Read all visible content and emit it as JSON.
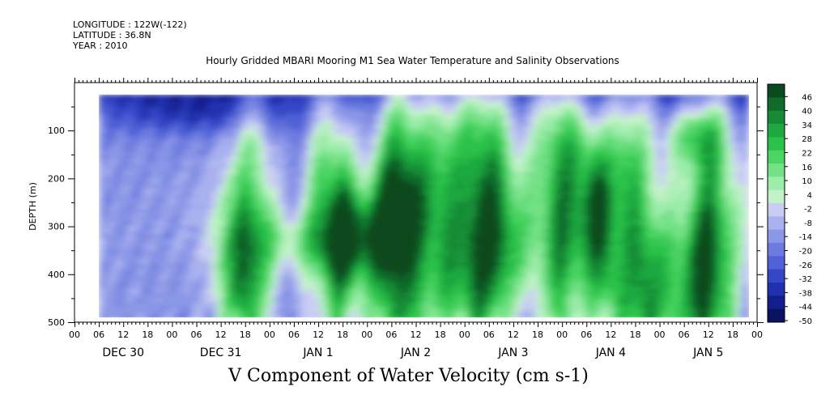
{
  "meta": {
    "longitude": "LONGITUDE : 122W(-122)",
    "latitude": "LATITUDE : 36.8N",
    "year": "YEAR : 2010"
  },
  "chart_data": {
    "type": "heatmap",
    "title": "Hourly Gridded MBARI Mooring M1 Sea Water Temperature and Salinity Observations",
    "xlabel": "V Component of Water Velocity (cm s-1)",
    "ylabel": "DEPTH (m)",
    "y_ticks": [
      100,
      200,
      300,
      400,
      500
    ],
    "y_range": [
      0,
      500
    ],
    "y_inverted": true,
    "x_hour_ticks": [
      "00",
      "06",
      "12",
      "18",
      "00",
      "06",
      "12",
      "18",
      "00",
      "06",
      "12",
      "18",
      "00",
      "06",
      "12",
      "18",
      "00",
      "06",
      "12",
      "18",
      "00",
      "06",
      "12",
      "18",
      "00",
      "06",
      "12",
      "18",
      "00"
    ],
    "x_day_labels": [
      "DEC 30",
      "DEC 31",
      "JAN  1",
      "JAN  2",
      "JAN  3",
      "JAN  4",
      "JAN  5"
    ],
    "colorbar": {
      "labels": [
        "46",
        "40",
        "34",
        "28",
        "22",
        "16",
        "10",
        "4",
        "-2",
        "-8",
        "-14",
        "-20",
        "-26",
        "-32",
        "-38",
        "-44",
        "-50"
      ],
      "colors": [
        "#0b4a1f",
        "#106a2a",
        "#178a35",
        "#1fa83f",
        "#2bc24a",
        "#4cd464",
        "#74e187",
        "#9cecaa",
        "#c2f2c9",
        "#c9cdf3",
        "#a9b1ee",
        "#8a96e6",
        "#6d7bdf",
        "#4f61d6",
        "#3447c7",
        "#2030ae",
        "#121f8a",
        "#0a1260"
      ]
    },
    "data_start_hour": 6,
    "data_end_hour": 166,
    "data_depth_range": [
      25,
      490
    ],
    "series_description_note": ""
  }
}
